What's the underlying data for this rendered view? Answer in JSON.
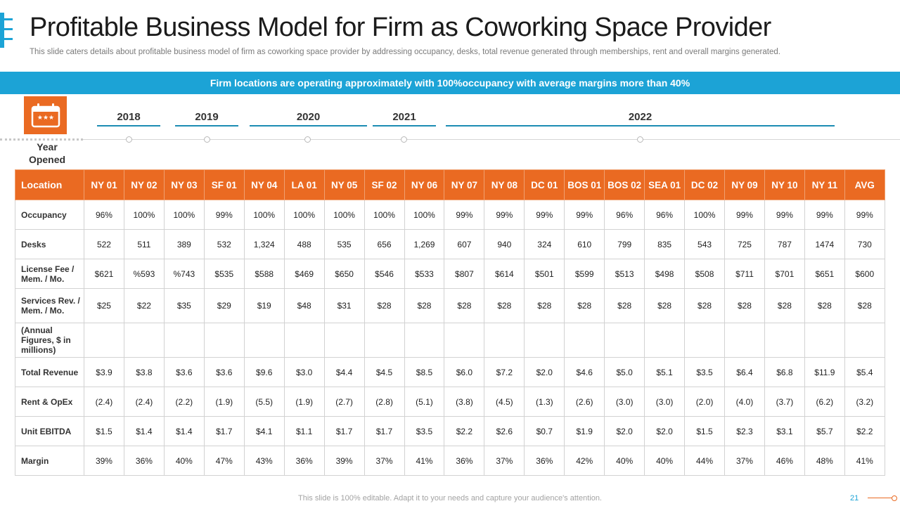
{
  "title": "Profitable Business Model for Firm as Coworking Space Provider",
  "subtitle": "This slide caters details about profitable business model of firm as coworking space provider  by addressing occupancy, desks, total revenue  generated through memberships, rent and overall  margins generated.",
  "banner": "Firm locations are operating approximately with 100%occupancy  with average margins more than 40%",
  "timeline": {
    "label": "Year Opened",
    "icon": "calendar-icon",
    "years": [
      "2018",
      "2019",
      "2020",
      "2021",
      "2022"
    ]
  },
  "table": {
    "header_label": "Location",
    "columns": [
      "NY 01",
      "NY 02",
      "NY 03",
      "SF 01",
      "NY 04",
      "LA 01",
      "NY 05",
      "SF 02",
      "NY 06",
      "NY 07",
      "NY 08",
      "DC 01",
      "BOS 01",
      "BOS 02",
      "SEA 01",
      "DC 02",
      "NY 09",
      "NY 10",
      "NY 11",
      "AVG"
    ],
    "rows": [
      {
        "label": "Occupancy",
        "values": [
          "96%",
          "100%",
          "100%",
          "99%",
          "100%",
          "100%",
          "100%",
          "100%",
          "100%",
          "99%",
          "99%",
          "99%",
          "99%",
          "96%",
          "96%",
          "100%",
          "99%",
          "99%",
          "99%",
          "99%"
        ]
      },
      {
        "label": "Desks",
        "values": [
          "522",
          "511",
          "389",
          "532",
          "1,324",
          "488",
          "535",
          "656",
          "1,269",
          "607",
          "940",
          "324",
          "610",
          "799",
          "835",
          "543",
          "725",
          "787",
          "1474",
          "730"
        ]
      },
      {
        "label": "License Fee / Mem. / Mo.",
        "values": [
          "$621",
          "%593",
          "%743",
          "$535",
          "$588",
          "$469",
          "$650",
          "$546",
          "$533",
          "$807",
          "$614",
          "$501",
          "$599",
          "$513",
          "$498",
          "$508",
          "$711",
          "$701",
          "$651",
          "$600"
        ]
      },
      {
        "label": "Services Rev.  / Mem. / Mo.",
        "values": [
          "$25",
          "$22",
          "$35",
          "$29",
          "$19",
          "$48",
          "$31",
          "$28",
          "$28",
          "$28",
          "$28",
          "$28",
          "$28",
          "$28",
          "$28",
          "$28",
          "$28",
          "$28",
          "$28",
          "$28"
        ]
      },
      {
        "label": "(Annual Figures,  $ in millions)",
        "values": [
          "",
          "",
          "",
          "",
          "",
          "",
          "",
          "",
          "",
          "",
          "",
          "",
          "",
          "",
          "",
          "",
          "",
          "",
          "",
          ""
        ]
      },
      {
        "label": "Total Revenue",
        "values": [
          "$3.9",
          "$3.8",
          "$3.6",
          "$3.6",
          "$9.6",
          "$3.0",
          "$4.4",
          "$4.5",
          "$8.5",
          "$6.0",
          "$7.2",
          "$2.0",
          "$4.6",
          "$5.0",
          "$5.1",
          "$3.5",
          "$6.4",
          "$6.8",
          "$11.9",
          "$5.4"
        ]
      },
      {
        "label": "Rent & OpEx",
        "values": [
          "(2.4)",
          "(2.4)",
          "(2.2)",
          "(1.9)",
          "(5.5)",
          "(1.9)",
          "(2.7)",
          "(2.8)",
          "(5.1)",
          "(3.8)",
          "(4.5)",
          "(1.3)",
          "(2.6)",
          "(3.0)",
          "(3.0)",
          "(2.0)",
          "(4.0)",
          "(3.7)",
          "(6.2)",
          "(3.2)"
        ]
      },
      {
        "label": "Unit EBITDA",
        "values": [
          "$1.5",
          "$1.4",
          "$1.4",
          "$1.7",
          "$4.1",
          "$1.1",
          "$1.7",
          "$1.7",
          "$3.5",
          "$2.2",
          "$2.6",
          "$0.7",
          "$1.9",
          "$2.0",
          "$2.0",
          "$1.5",
          "$2.3",
          "$3.1",
          "$5.7",
          "$2.2"
        ]
      },
      {
        "label": "Margin",
        "values": [
          "39%",
          "36%",
          "40%",
          "47%",
          "43%",
          "36%",
          "39%",
          "37%",
          "41%",
          "36%",
          "37%",
          "36%",
          "42%",
          "40%",
          "40%",
          "44%",
          "37%",
          "46%",
          "48%",
          "41%"
        ]
      }
    ]
  },
  "footer": "This slide is 100% editable. Adapt it to your needs and capture your audience's attention.",
  "page_number": "21",
  "colors": {
    "accent_blue": "#1ca3d6",
    "accent_orange": "#ea6a22",
    "timeline_bar": "#1c8cb3"
  }
}
